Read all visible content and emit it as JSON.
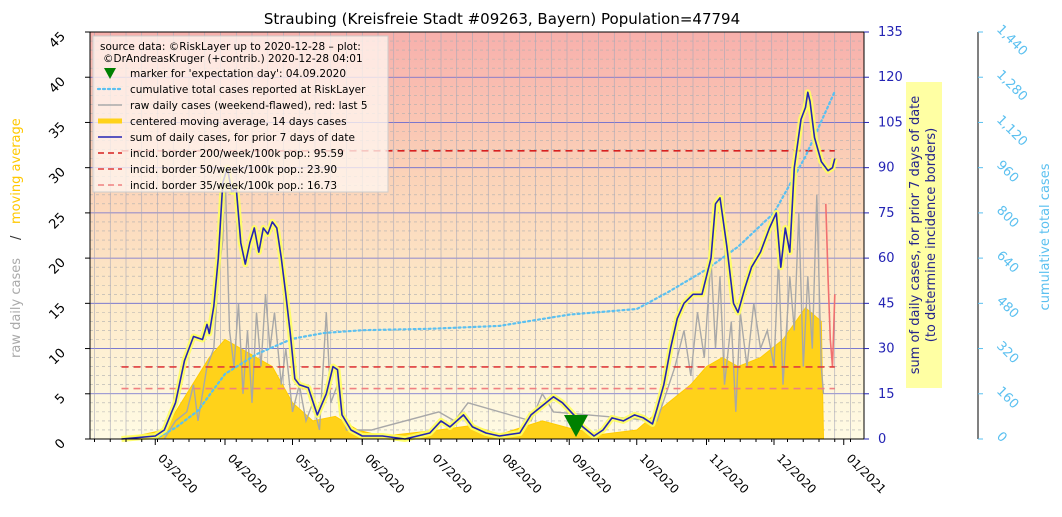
{
  "chart_data": {
    "type": "line",
    "title": "Straubing (Kreisfreie Stadt #09263, Bayern) Population=47794",
    "legend": {
      "placement": "top-left",
      "source_line1": "source data: ©RiskLayer up to 2020-12-28 – plot:",
      "source_line2": "©DrAndreasKruger (+contrib.) 2020-12-28 04:01",
      "entries": [
        {
          "label": "marker for 'expectation day': 04.09.2020",
          "kind": "marker",
          "color": "#008000"
        },
        {
          "label": "cumulative total cases reported at RiskLayer",
          "kind": "dotted",
          "color": "#5bc0f0"
        },
        {
          "label": "raw daily cases (weekend-flawed), red: last 5",
          "kind": "line",
          "color": "#aaaaaa"
        },
        {
          "label": "centered moving average, 14 days cases",
          "kind": "thick",
          "color": "#ffd21a"
        },
        {
          "label": "sum of daily cases, for prior 7 days of date",
          "kind": "line",
          "color": "#2424b4"
        },
        {
          "label": "incid. border 200/week/100k pop.: 95.59",
          "kind": "dashed",
          "color": "#d62020"
        },
        {
          "label": "incid. border 50/week/100k pop.: 23.90",
          "kind": "dashed",
          "color": "#e03c3c"
        },
        {
          "label": "incid. border 35/week/100k pop.: 16.73",
          "kind": "dashed",
          "color": "#f08080"
        }
      ]
    },
    "y_left": {
      "ticks": [
        "0",
        "5",
        "10",
        "15",
        "20",
        "25",
        "30",
        "35",
        "40",
        "45"
      ],
      "range": [
        0,
        45
      ],
      "label_part1": "raw daily cases",
      "label_sep": "/",
      "label_part2": "moving average"
    },
    "y_right": {
      "ticks": [
        "0",
        "15",
        "30",
        "45",
        "60",
        "75",
        "90",
        "105",
        "120",
        "135"
      ],
      "range": [
        0,
        135
      ],
      "label_line1": "sum of daily cases, for prior 7 days of date",
      "label_line2": "(to determine incidence borders)"
    },
    "y_right2": {
      "ticks": [
        "0",
        "160",
        "320",
        "480",
        "640",
        "800",
        "960",
        "1,120",
        "1,280",
        "1,440"
      ],
      "range": [
        0,
        1440
      ],
      "label": "cumulative total cases"
    },
    "x_axis": {
      "start": "2020-02-01",
      "end": "2021-01-10",
      "ticks": [
        "03/2020",
        "04/2020",
        "05/2020",
        "06/2020",
        "07/2020",
        "08/2020",
        "09/2020",
        "10/2020",
        "11/2020",
        "12/2020",
        "01/2021"
      ],
      "tick_dates": [
        "2020-03-01",
        "2020-04-01",
        "2020-05-01",
        "2020-06-01",
        "2020-07-01",
        "2020-08-01",
        "2020-09-01",
        "2020-10-01",
        "2020-11-01",
        "2020-12-01",
        "2021-01-01"
      ]
    },
    "incidence_borders": [
      95.59,
      23.9,
      16.73
    ],
    "expectation_day": "2020-09-04",
    "series": [
      {
        "name": "sum of daily cases, for prior 7 days of date",
        "axis": "right",
        "points": [
          [
            "2020-02-15",
            0
          ],
          [
            "2020-03-01",
            1
          ],
          [
            "2020-03-05",
            3
          ],
          [
            "2020-03-10",
            12
          ],
          [
            "2020-03-14",
            26
          ],
          [
            "2020-03-18",
            34
          ],
          [
            "2020-03-22",
            33
          ],
          [
            "2020-03-24",
            38
          ],
          [
            "2020-03-25",
            35
          ],
          [
            "2020-03-27",
            44
          ],
          [
            "2020-03-29",
            60
          ],
          [
            "2020-03-31",
            85
          ],
          [
            "2020-04-02",
            90
          ],
          [
            "2020-04-04",
            82
          ],
          [
            "2020-04-06",
            83
          ],
          [
            "2020-04-08",
            65
          ],
          [
            "2020-04-10",
            58
          ],
          [
            "2020-04-12",
            65
          ],
          [
            "2020-04-14",
            70
          ],
          [
            "2020-04-16",
            62
          ],
          [
            "2020-04-18",
            70
          ],
          [
            "2020-04-20",
            68
          ],
          [
            "2020-04-22",
            72
          ],
          [
            "2020-04-24",
            70
          ],
          [
            "2020-04-26",
            60
          ],
          [
            "2020-04-28",
            48
          ],
          [
            "2020-04-30",
            35
          ],
          [
            "2020-05-02",
            20
          ],
          [
            "2020-05-04",
            18
          ],
          [
            "2020-05-08",
            17
          ],
          [
            "2020-05-12",
            8
          ],
          [
            "2020-05-16",
            15
          ],
          [
            "2020-05-19",
            24
          ],
          [
            "2020-05-21",
            23
          ],
          [
            "2020-05-23",
            8
          ],
          [
            "2020-05-27",
            3
          ],
          [
            "2020-06-01",
            1
          ],
          [
            "2020-06-10",
            1
          ],
          [
            "2020-06-20",
            0
          ],
          [
            "2020-07-01",
            2
          ],
          [
            "2020-07-06",
            6
          ],
          [
            "2020-07-10",
            4
          ],
          [
            "2020-07-16",
            8
          ],
          [
            "2020-07-20",
            4
          ],
          [
            "2020-07-26",
            2
          ],
          [
            "2020-08-01",
            1
          ],
          [
            "2020-08-10",
            2
          ],
          [
            "2020-08-15",
            8
          ],
          [
            "2020-08-20",
            11
          ],
          [
            "2020-08-25",
            14
          ],
          [
            "2020-08-29",
            12
          ],
          [
            "2020-09-03",
            8
          ],
          [
            "2020-09-07",
            4
          ],
          [
            "2020-09-12",
            1
          ],
          [
            "2020-09-16",
            3
          ],
          [
            "2020-09-20",
            7
          ],
          [
            "2020-09-25",
            6
          ],
          [
            "2020-09-30",
            8
          ],
          [
            "2020-10-04",
            7
          ],
          [
            "2020-10-08",
            5
          ],
          [
            "2020-10-10",
            10
          ],
          [
            "2020-10-13",
            18
          ],
          [
            "2020-10-16",
            30
          ],
          [
            "2020-10-19",
            40
          ],
          [
            "2020-10-22",
            45
          ],
          [
            "2020-10-26",
            48
          ],
          [
            "2020-10-30",
            48
          ],
          [
            "2020-11-03",
            60
          ],
          [
            "2020-11-05",
            78
          ],
          [
            "2020-11-07",
            80
          ],
          [
            "2020-11-10",
            64
          ],
          [
            "2020-11-13",
            45
          ],
          [
            "2020-11-15",
            42
          ],
          [
            "2020-11-18",
            50
          ],
          [
            "2020-11-21",
            57
          ],
          [
            "2020-11-25",
            62
          ],
          [
            "2020-11-29",
            70
          ],
          [
            "2020-12-02",
            75
          ],
          [
            "2020-12-04",
            57
          ],
          [
            "2020-12-06",
            70
          ],
          [
            "2020-12-08",
            62
          ],
          [
            "2020-12-10",
            90
          ],
          [
            "2020-12-13",
            106
          ],
          [
            "2020-12-15",
            110
          ],
          [
            "2020-12-16",
            115
          ],
          [
            "2020-12-17",
            112
          ],
          [
            "2020-12-19",
            100
          ],
          [
            "2020-12-22",
            92
          ],
          [
            "2020-12-25",
            89
          ],
          [
            "2020-12-27",
            90
          ],
          [
            "2020-12-28",
            93
          ]
        ]
      },
      {
        "name": "cumulative total cases reported at RiskLayer",
        "axis": "right2",
        "points": [
          [
            "2020-03-01",
            0
          ],
          [
            "2020-03-10",
            40
          ],
          [
            "2020-03-20",
            100
          ],
          [
            "2020-04-01",
            230
          ],
          [
            "2020-04-15",
            300
          ],
          [
            "2020-05-01",
            355
          ],
          [
            "2020-05-15",
            375
          ],
          [
            "2020-06-01",
            385
          ],
          [
            "2020-07-01",
            390
          ],
          [
            "2020-08-01",
            400
          ],
          [
            "2020-09-01",
            440
          ],
          [
            "2020-10-01",
            460
          ],
          [
            "2020-10-15",
            520
          ],
          [
            "2020-11-01",
            600
          ],
          [
            "2020-11-15",
            680
          ],
          [
            "2020-12-01",
            800
          ],
          [
            "2020-12-15",
            1000
          ],
          [
            "2020-12-28",
            1230
          ]
        ]
      },
      {
        "name": "centered moving average, 14 days cases",
        "axis": "left",
        "points": [
          [
            "2020-02-15",
            0
          ],
          [
            "2020-03-05",
            1
          ],
          [
            "2020-03-15",
            5
          ],
          [
            "2020-03-25",
            9
          ],
          [
            "2020-04-01",
            11
          ],
          [
            "2020-04-08",
            10
          ],
          [
            "2020-04-15",
            9
          ],
          [
            "2020-04-22",
            8
          ],
          [
            "2020-05-01",
            4
          ],
          [
            "2020-05-10",
            2
          ],
          [
            "2020-05-20",
            2.5
          ],
          [
            "2020-05-30",
            1
          ],
          [
            "2020-06-10",
            0.3
          ],
          [
            "2020-07-05",
            1
          ],
          [
            "2020-07-20",
            1.5
          ],
          [
            "2020-08-01",
            0.5
          ],
          [
            "2020-08-20",
            2
          ],
          [
            "2020-09-01",
            1.2
          ],
          [
            "2020-09-15",
            0.5
          ],
          [
            "2020-10-01",
            1
          ],
          [
            "2020-10-15",
            4
          ],
          [
            "2020-10-25",
            6
          ],
          [
            "2020-11-01",
            8
          ],
          [
            "2020-11-08",
            9
          ],
          [
            "2020-11-15",
            8
          ],
          [
            "2020-11-25",
            9
          ],
          [
            "2020-12-05",
            11
          ],
          [
            "2020-12-15",
            14.5
          ],
          [
            "2020-12-22",
            13
          ],
          [
            "2020-12-23",
            0
          ]
        ]
      },
      {
        "name": "raw daily cases (weekend-flawed)",
        "axis": "left",
        "points": [
          [
            "2020-03-05",
            0
          ],
          [
            "2020-03-10",
            2
          ],
          [
            "2020-03-15",
            3
          ],
          [
            "2020-03-18",
            6
          ],
          [
            "2020-03-20",
            2
          ],
          [
            "2020-03-24",
            8
          ],
          [
            "2020-03-27",
            10
          ],
          [
            "2020-03-29",
            18
          ],
          [
            "2020-03-31",
            22
          ],
          [
            "2020-04-01",
            30
          ],
          [
            "2020-04-03",
            12
          ],
          [
            "2020-04-05",
            8
          ],
          [
            "2020-04-07",
            15
          ],
          [
            "2020-04-09",
            5
          ],
          [
            "2020-04-11",
            12
          ],
          [
            "2020-04-13",
            4
          ],
          [
            "2020-04-15",
            14
          ],
          [
            "2020-04-17",
            8
          ],
          [
            "2020-04-19",
            16
          ],
          [
            "2020-04-21",
            10
          ],
          [
            "2020-04-23",
            14
          ],
          [
            "2020-04-26",
            6
          ],
          [
            "2020-04-28",
            10
          ],
          [
            "2020-05-01",
            3
          ],
          [
            "2020-05-04",
            6
          ],
          [
            "2020-05-07",
            2
          ],
          [
            "2020-05-10",
            4
          ],
          [
            "2020-05-13",
            1
          ],
          [
            "2020-05-16",
            14
          ],
          [
            "2020-05-18",
            4
          ],
          [
            "2020-05-21",
            6
          ],
          [
            "2020-05-25",
            1
          ],
          [
            "2020-06-05",
            1
          ],
          [
            "2020-07-05",
            3
          ],
          [
            "2020-07-12",
            2
          ],
          [
            "2020-07-18",
            4
          ],
          [
            "2020-08-15",
            2
          ],
          [
            "2020-08-20",
            5
          ],
          [
            "2020-08-25",
            3
          ],
          [
            "2020-10-10",
            2
          ],
          [
            "2020-10-14",
            5
          ],
          [
            "2020-10-18",
            8
          ],
          [
            "2020-10-22",
            12
          ],
          [
            "2020-10-25",
            7
          ],
          [
            "2020-10-28",
            14
          ],
          [
            "2020-10-31",
            9
          ],
          [
            "2020-11-03",
            20
          ],
          [
            "2020-11-05",
            10
          ],
          [
            "2020-11-07",
            18
          ],
          [
            "2020-11-09",
            6
          ],
          [
            "2020-11-12",
            13
          ],
          [
            "2020-11-14",
            3
          ],
          [
            "2020-11-16",
            14
          ],
          [
            "2020-11-19",
            8
          ],
          [
            "2020-11-22",
            15
          ],
          [
            "2020-11-25",
            10
          ],
          [
            "2020-11-28",
            12
          ],
          [
            "2020-12-01",
            8
          ],
          [
            "2020-12-03",
            20
          ],
          [
            "2020-12-05",
            6
          ],
          [
            "2020-12-08",
            18
          ],
          [
            "2020-12-10",
            12
          ],
          [
            "2020-12-12",
            25
          ],
          [
            "2020-12-14",
            8
          ],
          [
            "2020-12-16",
            18
          ],
          [
            "2020-12-18",
            10
          ],
          [
            "2020-12-20",
            27
          ],
          [
            "2020-12-22",
            8
          ],
          [
            "2020-12-23",
            5
          ]
        ]
      },
      {
        "name": "raw daily cases, last 5",
        "axis": "left",
        "points": [
          [
            "2020-12-24",
            26
          ],
          [
            "2020-12-25",
            18
          ],
          [
            "2020-12-26",
            11
          ],
          [
            "2020-12-27",
            8
          ],
          [
            "2020-12-28",
            16
          ]
        ]
      }
    ]
  }
}
